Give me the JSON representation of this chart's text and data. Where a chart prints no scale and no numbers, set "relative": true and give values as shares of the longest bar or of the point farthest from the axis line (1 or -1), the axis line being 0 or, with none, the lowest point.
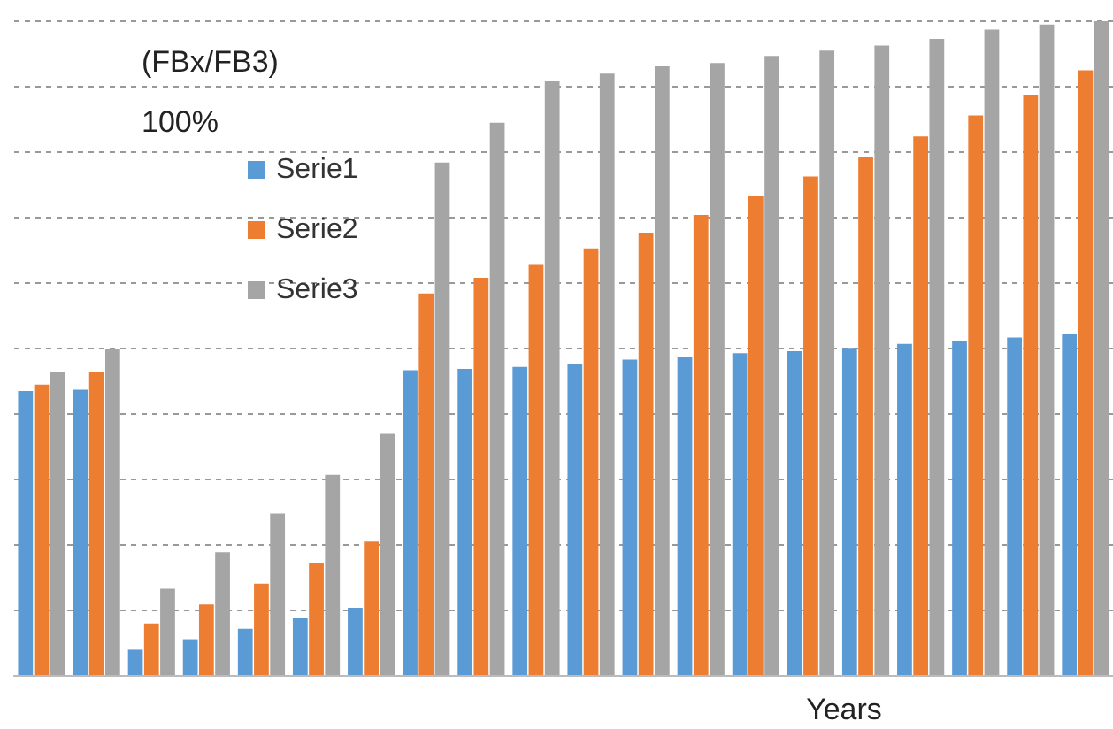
{
  "chart_data": {
    "type": "bar",
    "relative": true,
    "ylabel": "(FBx/FB3)",
    "xlabel": "Years",
    "annotations": [
      "100%"
    ],
    "categories": [
      null,
      null,
      null,
      null,
      null,
      null,
      null,
      null,
      null,
      null,
      null,
      null,
      null,
      null,
      null,
      null,
      null,
      null,
      null,
      null
    ],
    "series": [
      {
        "name": "Serie1",
        "color": "#5b9bd5",
        "values": [
          0.435,
          0.437,
          0.04,
          0.056,
          0.072,
          0.088,
          0.104,
          0.467,
          0.469,
          0.472,
          0.477,
          0.483,
          0.488,
          0.493,
          0.496,
          0.501,
          0.507,
          0.512,
          0.517,
          0.523
        ]
      },
      {
        "name": "Serie2",
        "color": "#ed7d31",
        "values": [
          0.445,
          0.464,
          0.08,
          0.109,
          0.141,
          0.173,
          0.205,
          0.584,
          0.608,
          0.629,
          0.653,
          0.677,
          0.704,
          0.733,
          0.763,
          0.792,
          0.824,
          0.856,
          0.888,
          0.925
        ]
      },
      {
        "name": "Serie3",
        "color": "#a5a5a5",
        "values": [
          0.464,
          0.499,
          0.133,
          0.189,
          0.248,
          0.307,
          0.371,
          0.784,
          0.845,
          0.909,
          0.92,
          0.931,
          0.936,
          0.947,
          0.955,
          0.963,
          0.973,
          0.987,
          0.995,
          1
        ]
      }
    ],
    "grid": "y",
    "legend": "top left"
  }
}
